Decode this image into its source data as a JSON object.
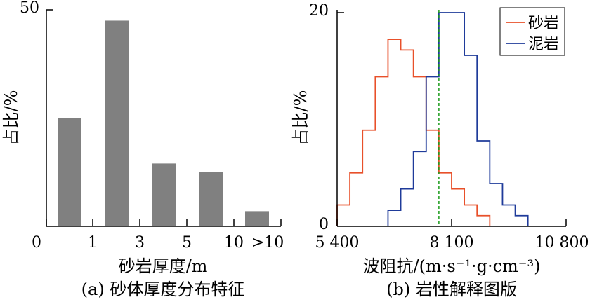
{
  "chart_data": [
    {
      "type": "bar",
      "xlabel": "砂岩厚度/m",
      "ylabel": "占比/%",
      "caption": "(a) 砂体厚度分布特征",
      "ylim": [
        0,
        50
      ],
      "y_ticks": [
        "0",
        "50"
      ],
      "x_ticks": [
        "0",
        "1",
        "3",
        "5",
        "10",
        ">10"
      ],
      "bins": [
        [
          0,
          1
        ],
        [
          1,
          3
        ],
        [
          3,
          5
        ],
        [
          5,
          10
        ],
        [
          10,
          null
        ]
      ],
      "values": [
        25,
        47.5,
        14.5,
        12.5,
        3.5
      ],
      "bar_color": "#808080"
    },
    {
      "type": "line",
      "step": true,
      "xlabel": "波阻抗/(m·s⁻¹·g·cm⁻³)",
      "ylabel": "占比/%",
      "caption": "(b) 岩性解释图版",
      "xlim": [
        5400,
        10800
      ],
      "ylim": [
        0,
        20
      ],
      "x_ticks": [
        "5 400",
        "8 100",
        "10 800"
      ],
      "y_ticks": [
        "0",
        "20"
      ],
      "bin_width": 300,
      "threshold_x": 7800,
      "threshold_color": "#1a9a1a",
      "series": [
        {
          "name": "砂岩",
          "color": "#e8502a",
          "bin_starts": [
            5400,
            5700,
            6000,
            6300,
            6600,
            6900,
            7200,
            7500,
            7800,
            8100,
            8400,
            8700
          ],
          "values": [
            2,
            5,
            9,
            14,
            17.5,
            16.5,
            14,
            9,
            5,
            3.5,
            2,
            1
          ]
        },
        {
          "name": "泥岩",
          "color": "#1f3b9a",
          "bin_starts": [
            6600,
            6900,
            7200,
            7500,
            7800,
            8100,
            8400,
            8700,
            9000,
            9300,
            9600
          ],
          "values": [
            1.5,
            3.5,
            7,
            14,
            20,
            20,
            16,
            8,
            4,
            2,
            1
          ]
        }
      ]
    }
  ]
}
